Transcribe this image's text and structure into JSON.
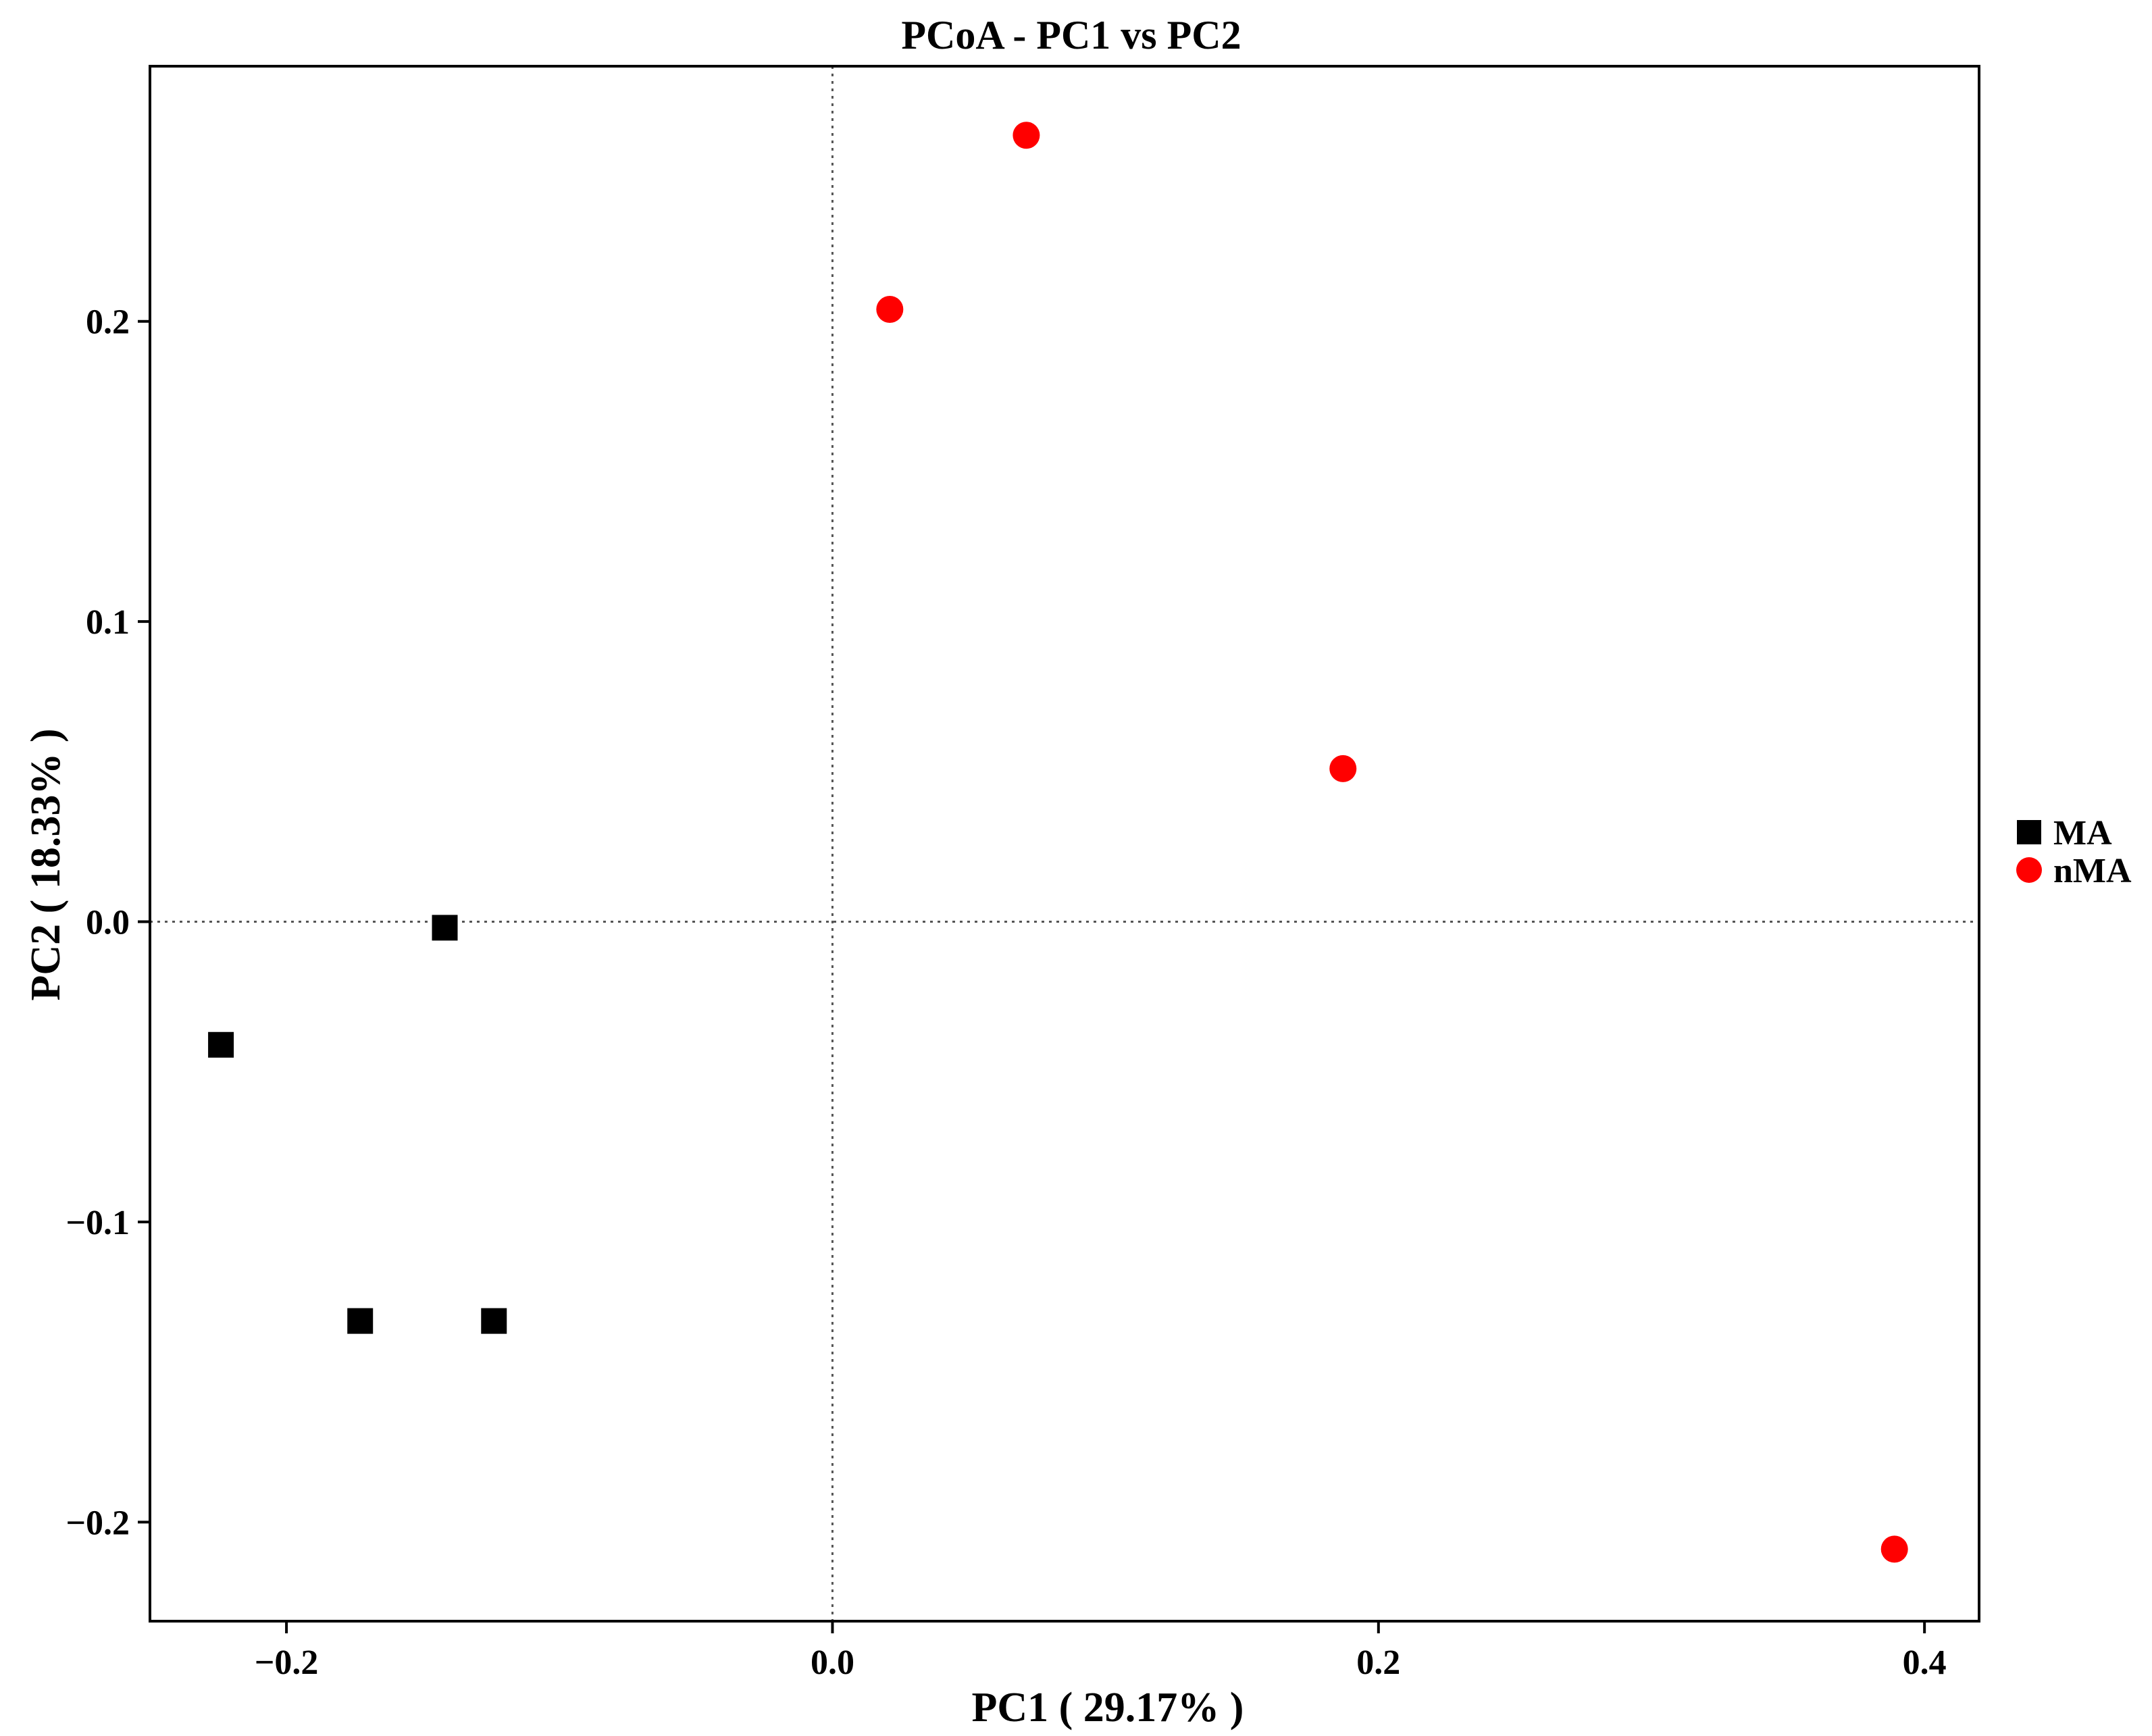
{
  "chart_data": {
    "type": "scatter",
    "title": "PCoA - PC1 vs PC2",
    "xlabel": "PC1 ( 29.17% )",
    "ylabel": "PC2 ( 18.33% )",
    "xlim": [
      -0.25,
      0.42
    ],
    "ylim": [
      -0.233,
      0.285
    ],
    "xticks": [
      -0.2,
      0.0,
      0.2,
      0.4
    ],
    "xtick_labels": [
      "−0.2",
      "0.0",
      "0.2",
      "0.4"
    ],
    "yticks": [
      -0.2,
      -0.1,
      0.0,
      0.1,
      0.2
    ],
    "ytick_labels": [
      "−0.2",
      "−0.1",
      "0.0",
      "0.1",
      "0.2"
    ],
    "reference_lines": {
      "x": 0.0,
      "y": 0.0,
      "style": "dotted"
    },
    "grid": false,
    "legend_position": "right",
    "series": [
      {
        "name": "MA",
        "marker": "square",
        "color": "#000000",
        "points": [
          {
            "x": -0.142,
            "y": -0.002
          },
          {
            "x": -0.224,
            "y": -0.041
          },
          {
            "x": -0.173,
            "y": -0.133
          },
          {
            "x": -0.124,
            "y": -0.133
          }
        ]
      },
      {
        "name": "nMA",
        "marker": "circle",
        "color": "#ff0000",
        "points": [
          {
            "x": 0.071,
            "y": 0.262
          },
          {
            "x": 0.021,
            "y": 0.204
          },
          {
            "x": 0.187,
            "y": 0.051
          },
          {
            "x": 0.389,
            "y": -0.209
          }
        ]
      }
    ]
  }
}
